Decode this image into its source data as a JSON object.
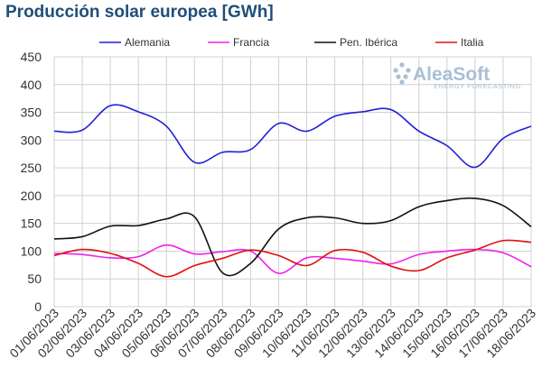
{
  "chart_data": {
    "type": "line",
    "title": "Producción solar europea [GWh]",
    "xlabel": "",
    "ylabel": "",
    "ylim": [
      0,
      450
    ],
    "yticks": [
      0,
      50,
      100,
      150,
      200,
      250,
      300,
      350,
      400,
      450
    ],
    "grid": true,
    "legend_position": "top",
    "categories": [
      "01/06/2023",
      "02/06/2023",
      "03/06/2023",
      "04/06/2023",
      "05/06/2023",
      "06/06/2023",
      "07/06/2023",
      "08/06/2023",
      "09/06/2023",
      "10/06/2023",
      "11/06/2023",
      "12/06/2023",
      "13/06/2023",
      "14/06/2023",
      "15/06/2023",
      "16/06/2023",
      "17/06/2023",
      "18/06/2023"
    ],
    "series": [
      {
        "name": "Alemania",
        "color": "#1f1fd6",
        "values": [
          316,
          318,
          362,
          351,
          325,
          260,
          278,
          283,
          330,
          316,
          343,
          351,
          355,
          316,
          290,
          251,
          303,
          325
        ]
      },
      {
        "name": "Francia",
        "color": "#ee22ee",
        "values": [
          96,
          94,
          88,
          90,
          111,
          95,
          99,
          100,
          60,
          88,
          87,
          82,
          77,
          94,
          100,
          103,
          97,
          72
        ]
      },
      {
        "name": "Pen. Ibérica",
        "color": "#111111",
        "values": [
          122,
          126,
          145,
          146,
          158,
          162,
          61,
          78,
          140,
          160,
          160,
          150,
          155,
          180,
          191,
          195,
          182,
          144
        ]
      },
      {
        "name": "Italia",
        "color": "#e01010",
        "values": [
          92,
          103,
          96,
          78,
          54,
          74,
          87,
          102,
          92,
          74,
          101,
          98,
          73,
          65,
          88,
          102,
          119,
          116
        ]
      }
    ]
  },
  "branding": {
    "logo_text": "AleaSoft",
    "logo_subtext": "ENERGY FORECASTING",
    "logo_color": "#a9bfd6"
  }
}
